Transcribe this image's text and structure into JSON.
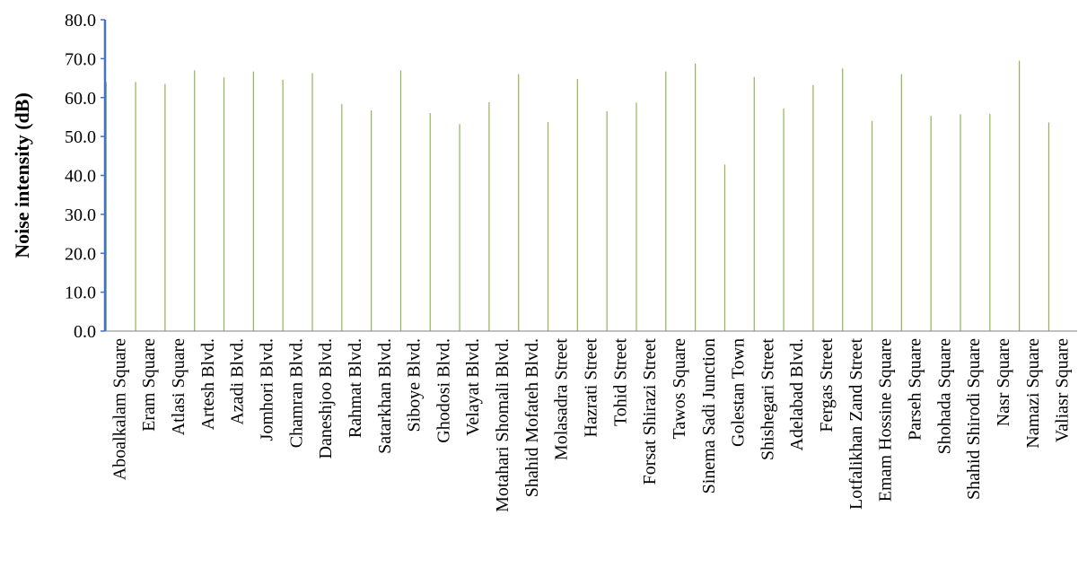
{
  "chart_data": {
    "type": "bar",
    "title": "",
    "xlabel": "",
    "ylabel": "Noise intensity (dB)",
    "ylim": [
      0,
      80
    ],
    "yticks": [
      "0.0",
      "10.0",
      "20.0",
      "30.0",
      "40.0",
      "50.0",
      "60.0",
      "70.0",
      "80.0"
    ],
    "grid": false,
    "legend": "none",
    "categories": [
      "Aboalkalam Square",
      "Eram Square",
      "Atlasi Square",
      "Artesh Blvd.",
      "Azadi Blvd.",
      "Jomhori Blvd.",
      "Chamran Blvd.",
      "Daneshjoo Blvd.",
      "Rahmat Blvd.",
      "Satarkhan Blvd.",
      "Siboye Blvd.",
      "Ghodosi Blvd.",
      "Velayat Blvd.",
      "Motahari Shomali Blvd.",
      "Shahid Mofateh Blvd.",
      "Molasadra Street",
      "Hazrati Street",
      "Tohid Street",
      "Forsat Shirazi Street",
      "Tawos Square",
      "Sinema Sadi Junction",
      "Golestan Town",
      "Shishegari Street",
      "Adelabad Blvd.",
      "Fergas Street",
      "Lotfalikhan Zand Street",
      "Emam Hossine Square",
      "Parseh Square",
      "Shohada Square",
      "Shahid Shirodi Square",
      "Nasr Square",
      "Namazi Square",
      "Valiasr Square"
    ],
    "values": [
      64.0,
      64.0,
      63.5,
      67.0,
      65.2,
      66.7,
      64.6,
      66.3,
      58.3,
      56.7,
      67.0,
      56.0,
      53.2,
      58.8,
      66.0,
      53.7,
      64.8,
      56.5,
      58.7,
      66.7,
      68.7,
      42.8,
      65.3,
      57.2,
      63.2,
      67.5,
      54.0,
      66.0,
      55.3,
      55.7,
      55.8,
      69.5,
      53.6
    ]
  },
  "colors": {
    "bar": "#8FB555",
    "y_axis": "#4472C4",
    "x_axis": "#808080",
    "text": "#000000"
  }
}
